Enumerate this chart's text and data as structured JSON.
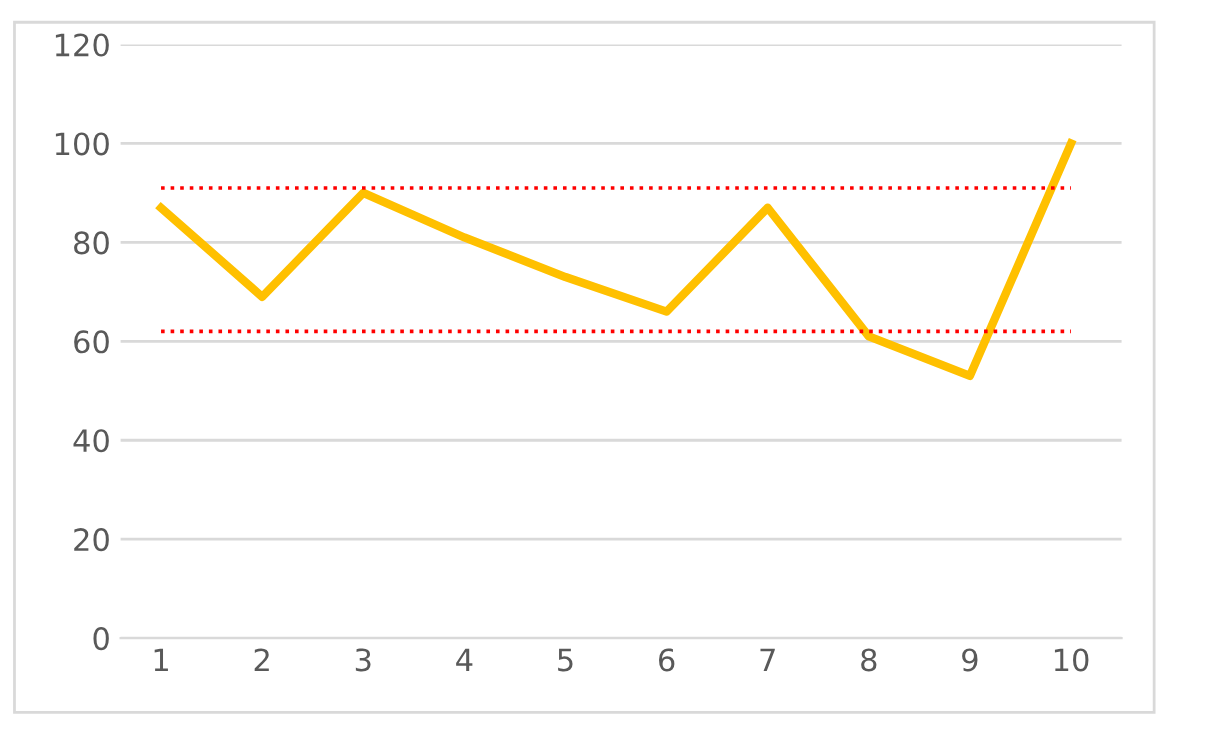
{
  "chart_data": {
    "type": "line",
    "categories": [
      "1",
      "2",
      "3",
      "4",
      "5",
      "6",
      "7",
      "8",
      "9",
      "10"
    ],
    "series": [
      {
        "color": "#ffc000",
        "values": [
          87,
          69,
          90,
          81,
          73,
          66,
          87,
          61,
          53,
          100
        ]
      }
    ],
    "ylim": [
      0,
      120
    ],
    "yticks": [
      0,
      20,
      40,
      60,
      80,
      100,
      120
    ],
    "grid": "y",
    "legend": false,
    "marker": "none",
    "line_style": "solid",
    "ref_lines": [
      {
        "axis": "y",
        "value": 91,
        "color": "#ff0000",
        "line_style": "dotted"
      },
      {
        "axis": "y",
        "value": 62,
        "color": "#ff0000",
        "line_style": "dotted"
      }
    ]
  }
}
